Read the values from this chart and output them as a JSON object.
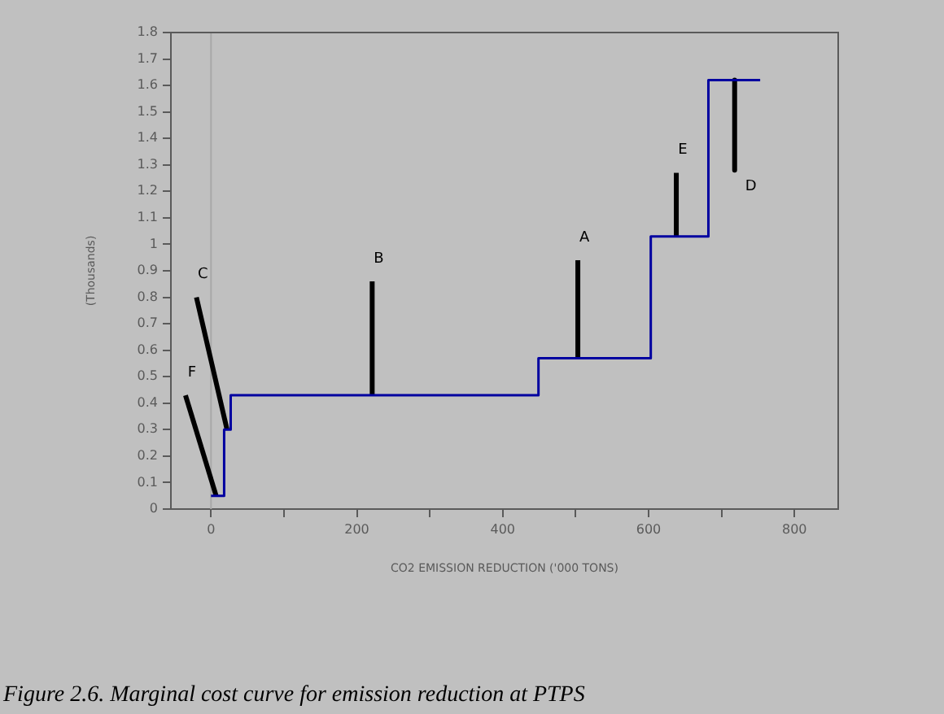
{
  "chart_data": {
    "type": "line",
    "xlabel": "CO2 EMISSION REDUCTION ('000 TONS)",
    "ylabel": "(Thousands)",
    "xlim": [
      -55,
      860
    ],
    "ylim": [
      0,
      1.8
    ],
    "xticks": [
      0,
      {
        "value": 100,
        "label": null
      },
      200,
      {
        "value": 300,
        "label": null
      },
      400,
      {
        "value": 500,
        "label": null
      },
      600,
      {
        "value": 700,
        "label": null
      },
      800
    ],
    "yticks": [
      0,
      0.1,
      0.2,
      0.3,
      0.4,
      0.5,
      0.6,
      0.7,
      0.8,
      0.9,
      1,
      1.1,
      1.2,
      1.3,
      1.4,
      1.5,
      1.6,
      1.7,
      1.8
    ],
    "grid": false,
    "legend": false,
    "marker": "none",
    "ref_lines": [
      {
        "axis": "x",
        "value": 0,
        "color": "#a8a8a8"
      }
    ],
    "series": [
      {
        "type": "step",
        "color": "#0000a0",
        "x": [
          0,
          18,
          27,
          449,
          603,
          682,
          753
        ],
        "values": [
          0.05,
          0.3,
          0.43,
          0.57,
          1.03,
          1.62,
          1.62
        ]
      },
      {
        "color": "#000000",
        "x": [
          221,
          221
        ],
        "values": [
          0.43,
          0.86
        ]
      },
      {
        "color": "#000000",
        "x": [
          503,
          503
        ],
        "values": [
          0.57,
          0.94
        ]
      },
      {
        "color": "#000000",
        "x": [
          638,
          638
        ],
        "values": [
          1.03,
          1.27
        ]
      },
      {
        "color": "#000000",
        "x": [
          718,
          718
        ],
        "values": [
          1.62,
          1.28
        ]
      },
      {
        "color": "#000000",
        "x": [
          -20,
          22
        ],
        "values": [
          0.8,
          0.3
        ]
      },
      {
        "color": "#000000",
        "x": [
          -35,
          7
        ],
        "values": [
          0.43,
          0.05
        ]
      }
    ],
    "annotations": [
      {
        "text": "A",
        "x": 503,
        "y": 0.94
      },
      {
        "text": "B",
        "x": 221,
        "y": 0.86
      },
      {
        "text": "C",
        "x": -20,
        "y": 0.8
      },
      {
        "text": "D",
        "x": 718,
        "y": 1.28
      },
      {
        "text": "E",
        "x": 638,
        "y": 1.27
      },
      {
        "text": "F",
        "x": -35,
        "y": 0.43
      },
      "Figure 2.6. Marginal cost curve for emission reduction at PTPS"
    ]
  }
}
